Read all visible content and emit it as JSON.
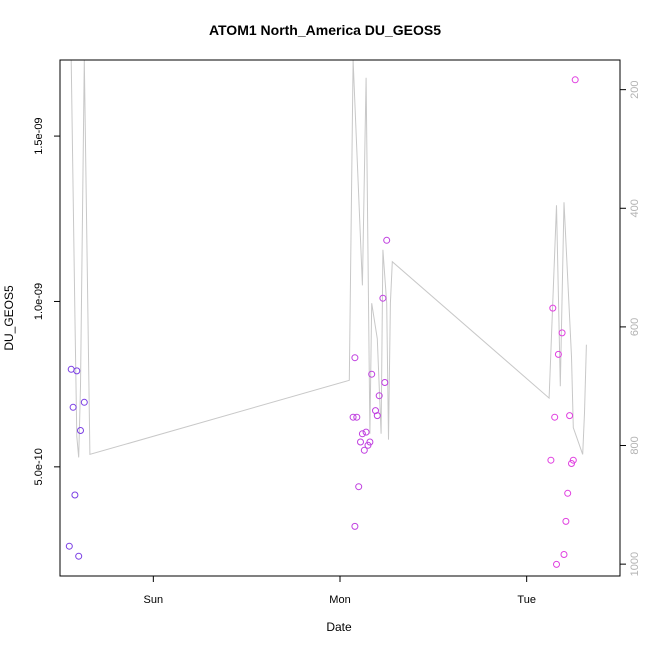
{
  "chart_data": {
    "type": "scatter",
    "title": "ATOM1 North_America DU_GEOS5",
    "xlabel": "Date",
    "ylabel": "DU_GEOS5",
    "xlim": [
      0,
      3
    ],
    "ylim": [
      1.7e-10,
      1.73e-09
    ],
    "x_ticks": [
      {
        "value": 0.5,
        "label": "Sun"
      },
      {
        "value": 1.5,
        "label": "Mon"
      },
      {
        "value": 2.5,
        "label": "Tue"
      }
    ],
    "y_ticks": [
      {
        "value": 5e-10,
        "label": "5.0e-10"
      },
      {
        "value": 1e-09,
        "label": "1.0e-09"
      },
      {
        "value": 1.5e-09,
        "label": "1.5e-09"
      }
    ],
    "right_axis": {
      "range_top": 150,
      "range_bottom": 1020,
      "ticks": [
        200,
        400,
        600,
        800,
        1000
      ],
      "color": "#b3b3b3"
    },
    "line_series": {
      "name": "secondary",
      "color": "#c8c8c8",
      "points": [
        [
          0.06,
          150
        ],
        [
          0.08,
          580
        ],
        [
          0.09,
          785
        ],
        [
          0.1,
          820
        ],
        [
          0.11,
          700
        ],
        [
          0.13,
          150
        ],
        [
          0.16,
          815
        ],
        [
          1.55,
          690
        ],
        [
          1.57,
          150
        ],
        [
          1.62,
          530
        ],
        [
          1.64,
          180
        ],
        [
          1.66,
          780
        ],
        [
          1.67,
          560
        ],
        [
          1.7,
          620
        ],
        [
          1.72,
          780
        ],
        [
          1.73,
          470
        ],
        [
          1.75,
          560
        ],
        [
          1.76,
          790
        ],
        [
          1.77,
          560
        ],
        [
          1.78,
          490
        ],
        [
          2.62,
          720
        ],
        [
          2.66,
          395
        ],
        [
          2.68,
          700
        ],
        [
          2.7,
          390
        ],
        [
          2.74,
          650
        ],
        [
          2.75,
          770
        ],
        [
          2.8,
          815
        ],
        [
          2.81,
          745
        ],
        [
          2.82,
          630
        ]
      ]
    },
    "series": [
      {
        "name": "points",
        "points": [
          {
            "x": 0.05,
            "y": 2.6e-10,
            "color": "#7b3fe4"
          },
          {
            "x": 0.06,
            "y": 7.95e-10,
            "color": "#7b3fe4"
          },
          {
            "x": 0.07,
            "y": 6.8e-10,
            "color": "#7b3fe4"
          },
          {
            "x": 0.08,
            "y": 4.15e-10,
            "color": "#7b3fe4"
          },
          {
            "x": 0.09,
            "y": 7.9e-10,
            "color": "#7b3fe4"
          },
          {
            "x": 0.1,
            "y": 2.3e-10,
            "color": "#7b3fe4"
          },
          {
            "x": 0.11,
            "y": 6.1e-10,
            "color": "#7b3fe4"
          },
          {
            "x": 0.13,
            "y": 6.95e-10,
            "color": "#7b3fe4"
          },
          {
            "x": 1.57,
            "y": 6.5e-10,
            "color": "#c040e0"
          },
          {
            "x": 1.58,
            "y": 3.2e-10,
            "color": "#c040e0"
          },
          {
            "x": 1.58,
            "y": 8.3e-10,
            "color": "#c040e0"
          },
          {
            "x": 1.59,
            "y": 6.5e-10,
            "color": "#c040e0"
          },
          {
            "x": 1.6,
            "y": 4.4e-10,
            "color": "#c040e0"
          },
          {
            "x": 1.61,
            "y": 5.75e-10,
            "color": "#c040e0"
          },
          {
            "x": 1.62,
            "y": 6e-10,
            "color": "#c040e0"
          },
          {
            "x": 1.63,
            "y": 5.5e-10,
            "color": "#c040e0"
          },
          {
            "x": 1.64,
            "y": 6.05e-10,
            "color": "#c040e0"
          },
          {
            "x": 1.65,
            "y": 5.65e-10,
            "color": "#c040e0"
          },
          {
            "x": 1.66,
            "y": 5.75e-10,
            "color": "#c040e0"
          },
          {
            "x": 1.67,
            "y": 7.8e-10,
            "color": "#c040e0"
          },
          {
            "x": 1.69,
            "y": 6.7e-10,
            "color": "#c040e0"
          },
          {
            "x": 1.7,
            "y": 6.55e-10,
            "color": "#c040e0"
          },
          {
            "x": 1.71,
            "y": 7.15e-10,
            "color": "#c040e0"
          },
          {
            "x": 1.73,
            "y": 1.01e-09,
            "color": "#c040e0"
          },
          {
            "x": 1.74,
            "y": 7.55e-10,
            "color": "#c040e0"
          },
          {
            "x": 1.75,
            "y": 1.185e-09,
            "color": "#c040e0"
          },
          {
            "x": 2.63,
            "y": 5.2e-10,
            "color": "#e040e0"
          },
          {
            "x": 2.64,
            "y": 9.8e-10,
            "color": "#e040e0"
          },
          {
            "x": 2.65,
            "y": 6.5e-10,
            "color": "#e040e0"
          },
          {
            "x": 2.66,
            "y": 2.05e-10,
            "color": "#e040e0"
          },
          {
            "x": 2.67,
            "y": 8.4e-10,
            "color": "#e040e0"
          },
          {
            "x": 2.69,
            "y": 9.05e-10,
            "color": "#e040e0"
          },
          {
            "x": 2.7,
            "y": 2.35e-10,
            "color": "#e040e0"
          },
          {
            "x": 2.71,
            "y": 3.35e-10,
            "color": "#e040e0"
          },
          {
            "x": 2.72,
            "y": 4.2e-10,
            "color": "#e040e0"
          },
          {
            "x": 2.73,
            "y": 6.55e-10,
            "color": "#e040e0"
          },
          {
            "x": 2.74,
            "y": 5.1e-10,
            "color": "#e040e0"
          },
          {
            "x": 2.75,
            "y": 5.2e-10,
            "color": "#e040e0"
          },
          {
            "x": 2.76,
            "y": 1.67e-09,
            "color": "#e040e0"
          }
        ]
      }
    ]
  }
}
